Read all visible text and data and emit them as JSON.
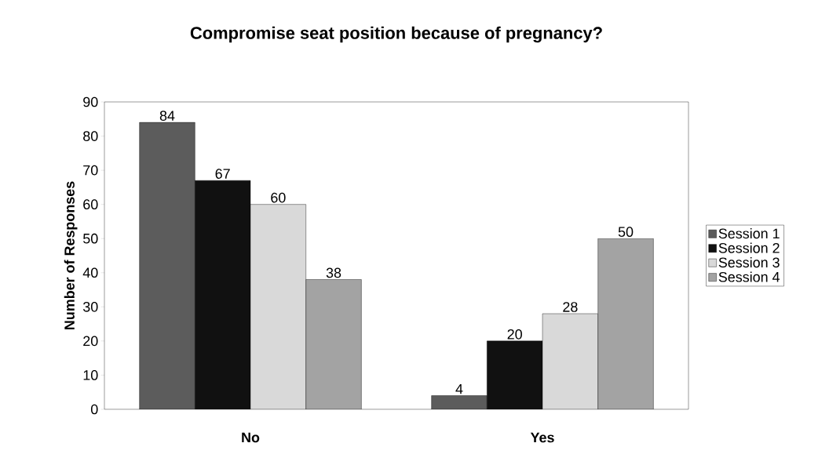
{
  "chart_data": {
    "type": "bar",
    "title": "Compromise seat position because of pregnancy?",
    "ylabel": "Number of Responses",
    "categories": [
      "No",
      "Yes"
    ],
    "series": [
      {
        "name": "Session 1",
        "color": "#5c5c5c",
        "values": [
          84,
          4
        ]
      },
      {
        "name": "Session 2",
        "color": "#111111",
        "values": [
          67,
          20
        ]
      },
      {
        "name": "Session 3",
        "color": "#d9d9d9",
        "values": [
          60,
          28
        ]
      },
      {
        "name": "Session 4",
        "color": "#a3a3a3",
        "values": [
          38,
          50
        ]
      }
    ],
    "ylim": [
      0,
      90
    ],
    "yticks": [
      0,
      10,
      20,
      30,
      40,
      50,
      60,
      70,
      80,
      90
    ],
    "data_labels": true,
    "grid": false,
    "legend": "right"
  }
}
